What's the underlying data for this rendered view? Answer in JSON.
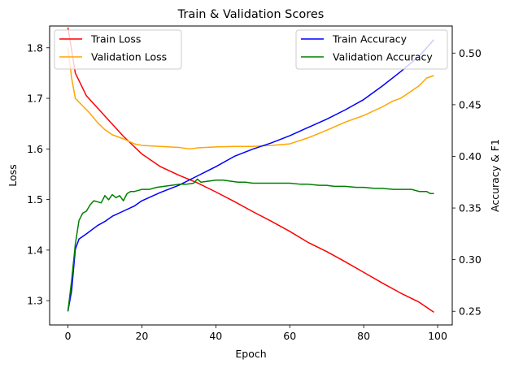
{
  "chart_data": {
    "type": "line",
    "title": "Train & Validation Scores",
    "xlabel": "Epoch",
    "ylabel_left": "Loss",
    "ylabel_right": "Accuracy & F1",
    "xlim": [
      -4.95,
      103.95
    ],
    "ylim_left": [
      1.252,
      1.843
    ],
    "ylim_right": [
      0.2368,
      0.5262
    ],
    "xticks": [
      0,
      20,
      40,
      60,
      80,
      100
    ],
    "yticks_left": [
      1.3,
      1.4,
      1.5,
      1.6,
      1.7,
      1.8
    ],
    "yticks_right": [
      0.25,
      0.3,
      0.35,
      0.4,
      0.45,
      0.5
    ],
    "grid": false,
    "legend_left": {
      "placement": "upper left",
      "entries": [
        "Train Loss",
        "Validation Loss"
      ]
    },
    "legend_right": {
      "placement": "upper right",
      "entries": [
        "Train Accuracy",
        "Validation Accuracy"
      ]
    },
    "series": [
      {
        "name": "Train Loss",
        "axis": "left",
        "color": "#ff0000",
        "x": [
          0,
          2,
          5,
          10,
          15,
          20,
          25,
          30,
          35,
          40,
          45,
          50,
          55,
          60,
          65,
          70,
          75,
          80,
          85,
          90,
          95,
          99
        ],
        "y": [
          1.84,
          1.75,
          1.705,
          1.665,
          1.625,
          1.59,
          1.565,
          1.548,
          1.533,
          1.515,
          1.496,
          1.476,
          1.457,
          1.437,
          1.415,
          1.397,
          1.377,
          1.356,
          1.335,
          1.315,
          1.297,
          1.277
        ]
      },
      {
        "name": "Validation Loss",
        "axis": "left",
        "color": "#ffa500",
        "x": [
          0,
          1,
          2,
          4,
          6,
          8,
          10,
          12,
          15,
          18,
          20,
          25,
          30,
          33,
          35,
          40,
          45,
          50,
          55,
          60,
          65,
          70,
          75,
          80,
          85,
          88,
          90,
          92,
          95,
          97,
          99
        ],
        "y": [
          1.8,
          1.74,
          1.7,
          1.685,
          1.67,
          1.652,
          1.638,
          1.628,
          1.62,
          1.61,
          1.607,
          1.605,
          1.603,
          1.6,
          1.602,
          1.604,
          1.605,
          1.605,
          1.607,
          1.61,
          1.622,
          1.637,
          1.653,
          1.666,
          1.683,
          1.695,
          1.7,
          1.71,
          1.725,
          1.74,
          1.745
        ]
      },
      {
        "name": "Train Accuracy",
        "axis": "right",
        "color": "#0000ff",
        "x": [
          0,
          1,
          2,
          3,
          5,
          8,
          10,
          12,
          15,
          18,
          20,
          25,
          30,
          35,
          40,
          45,
          50,
          55,
          60,
          65,
          70,
          75,
          80,
          85,
          90,
          95,
          99
        ],
        "y": [
          0.25,
          0.27,
          0.31,
          0.32,
          0.325,
          0.333,
          0.337,
          0.342,
          0.347,
          0.352,
          0.357,
          0.365,
          0.372,
          0.381,
          0.39,
          0.4,
          0.407,
          0.413,
          0.42,
          0.428,
          0.436,
          0.445,
          0.455,
          0.468,
          0.482,
          0.497,
          0.513
        ]
      },
      {
        "name": "Validation Accuracy",
        "axis": "right",
        "color": "#008000",
        "x": [
          0,
          1,
          2,
          3,
          4,
          5,
          6,
          7,
          8,
          9,
          10,
          11,
          12,
          13,
          14,
          15,
          16,
          17,
          18,
          20,
          22,
          24,
          26,
          28,
          30,
          32,
          34,
          35,
          36,
          38,
          40,
          42,
          44,
          46,
          48,
          50,
          52,
          55,
          58,
          60,
          63,
          65,
          68,
          70,
          72,
          75,
          78,
          80,
          83,
          85,
          88,
          90,
          93,
          95,
          96,
          97,
          98,
          99
        ],
        "y": [
          0.25,
          0.28,
          0.315,
          0.338,
          0.345,
          0.347,
          0.353,
          0.357,
          0.356,
          0.355,
          0.362,
          0.358,
          0.363,
          0.36,
          0.362,
          0.357,
          0.364,
          0.366,
          0.366,
          0.368,
          0.368,
          0.37,
          0.371,
          0.372,
          0.373,
          0.373,
          0.374,
          0.378,
          0.375,
          0.376,
          0.377,
          0.377,
          0.376,
          0.375,
          0.375,
          0.374,
          0.374,
          0.374,
          0.374,
          0.374,
          0.373,
          0.373,
          0.372,
          0.372,
          0.371,
          0.371,
          0.37,
          0.37,
          0.369,
          0.369,
          0.368,
          0.368,
          0.368,
          0.366,
          0.366,
          0.366,
          0.364,
          0.364
        ]
      }
    ]
  }
}
